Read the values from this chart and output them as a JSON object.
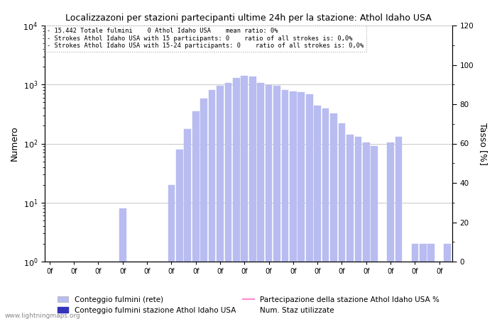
{
  "title": "Localizzazoni per stazioni partecipanti ultime 24h per la stazione: Athol Idaho USA",
  "annotation_lines": [
    "15.442 Totale fulmini    0 Athol Idaho USA    mean ratio: 0%",
    "Strokes Athol Idaho USA with 15 participants: 0    ratio of all strokes is: 0,0%",
    "Strokes Athol Idaho USA with 15-24 participants: 0    ratio of all strokes is: 0,0%"
  ],
  "ylabel_left": "Numero",
  "ylabel_right": "Tasso [%]",
  "bar_values": [
    1,
    1,
    1,
    1,
    1,
    1,
    1,
    1,
    1,
    8,
    1,
    1,
    1,
    1,
    1,
    20,
    80,
    175,
    350,
    580,
    800,
    950,
    1050,
    1300,
    1400,
    1350,
    1050,
    980,
    940,
    810,
    760,
    740,
    680,
    440,
    390,
    320,
    220,
    140,
    130,
    105,
    90,
    1,
    105,
    130,
    1,
    2,
    2,
    2,
    1,
    2
  ],
  "bar_color_light": "#b8bcf0",
  "bar_color_dark": "#3333bb",
  "line_color": "#ff88cc",
  "ylim_right": [
    0,
    120
  ],
  "right_ticks": [
    0,
    20,
    40,
    60,
    80,
    100,
    120
  ],
  "legend_label_1": "Conteggio fulmini (rete)",
  "legend_label_2": "Conteggio fulmini stazione Athol Idaho USA",
  "legend_label_3": "Partecipazione della stazione Athol Idaho USA %",
  "legend_label_4": "Num. Staz utilizzate",
  "watermark": "www.lightningmaps.org",
  "background_color": "#ffffff",
  "grid_color": "#c8c8c8"
}
